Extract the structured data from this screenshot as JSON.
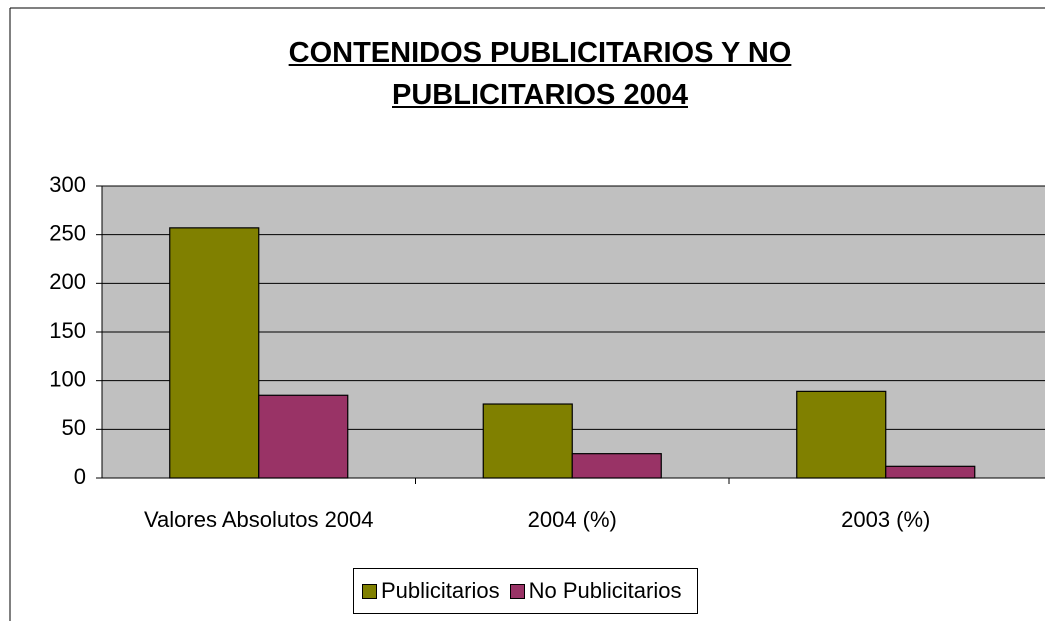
{
  "chart_data": {
    "type": "bar",
    "title": "CONTENIDOS PUBLICITARIOS Y NO PUBLICITARIOS 2004",
    "categories": [
      "Valores Absolutos 2004",
      "2004 (%)",
      "2003 (%)"
    ],
    "series": [
      {
        "name": "Publicitarios",
        "color": "#808000",
        "values": [
          257,
          76,
          89
        ]
      },
      {
        "name": "No Publicitarios",
        "color": "#993366",
        "values": [
          85,
          25,
          12
        ]
      }
    ],
    "ylim": [
      0,
      300
    ],
    "yticks": [
      0,
      50,
      100,
      150,
      200,
      250,
      300
    ],
    "grid": true,
    "legend": "bottom"
  }
}
